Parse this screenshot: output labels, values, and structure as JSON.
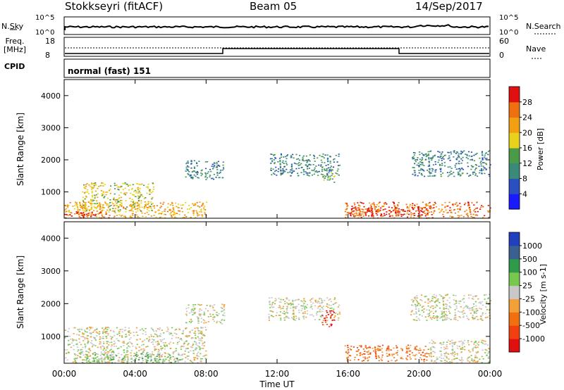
{
  "header": {
    "station": "Stokkseyri (fitACF)",
    "beam": "Beam 05",
    "date": "14/Sep/2017"
  },
  "noise_panel": {
    "left_label": "N.Sky",
    "right_label": "N.Search",
    "left_ticks": [
      "10^5",
      "10^0"
    ],
    "right_ticks": [
      "10^5",
      "10^0"
    ]
  },
  "freq_panel": {
    "left_label_line1": "Freq.",
    "left_label_line2": "[MHz]",
    "left_ticks": [
      "18",
      "8"
    ],
    "right_label": "Nave",
    "right_ticks": [
      "60",
      "0"
    ]
  },
  "cpid_panel": {
    "label": "CPID",
    "mode_text": "normal (fast) 151"
  },
  "chart_data": [
    {
      "type": "heatmap",
      "name": "Power",
      "ylabel": "Slant Range [km]",
      "yticks": [
        1000,
        2000,
        3000,
        4000
      ],
      "ylim": [
        180,
        4500
      ],
      "colorbar": {
        "label": "Power [dB]",
        "ticks": [
          "4",
          "8",
          "12",
          "16",
          "20",
          "24",
          "28"
        ],
        "colors": [
          "#1a1aff",
          "#2a4fc0",
          "#3a8a7a",
          "#4a9a4a",
          "#e8d21c",
          "#f2a010",
          "#f07010",
          "#e01010"
        ]
      },
      "echo_regions": [
        {
          "t0": 0.0,
          "t1": 8.0,
          "r0": 200,
          "r1": 700,
          "level": 5
        },
        {
          "t0": 0.0,
          "t1": 2.5,
          "r0": 200,
          "r1": 400,
          "level": 7
        },
        {
          "t0": 1.0,
          "t1": 5.0,
          "r0": 400,
          "r1": 1300,
          "level": 4
        },
        {
          "t0": 6.8,
          "t1": 9.0,
          "r0": 1400,
          "r1": 2000,
          "level": 2
        },
        {
          "t0": 11.5,
          "t1": 15.5,
          "r0": 1500,
          "r1": 2200,
          "level": 2
        },
        {
          "t0": 14.5,
          "t1": 15.2,
          "r0": 1300,
          "r1": 1800,
          "level": 3
        },
        {
          "t0": 15.8,
          "t1": 24.0,
          "r0": 200,
          "r1": 700,
          "level": 6
        },
        {
          "t0": 16.0,
          "t1": 20.5,
          "r0": 250,
          "r1": 550,
          "level": 7
        },
        {
          "t0": 19.5,
          "t1": 24.0,
          "r0": 1500,
          "r1": 2300,
          "level": 2
        }
      ]
    },
    {
      "type": "heatmap",
      "name": "Velocity",
      "ylabel": "Slant Range [km]",
      "yticks": [
        1000,
        2000,
        3000,
        4000
      ],
      "ylim": [
        180,
        4500
      ],
      "colorbar": {
        "label": "Velocity [m s-1]",
        "ticks": [
          "1000",
          "500",
          "100",
          "25",
          "-25",
          "-100",
          "-500",
          "-1000"
        ],
        "colors": [
          "#2040c0",
          "#3a6090",
          "#2f9a4a",
          "#78c850",
          "#c8c8c8",
          "#f4a038",
          "#f07010",
          "#f04010",
          "#e01010"
        ]
      },
      "echo_regions": [
        {
          "t0": 0.0,
          "t1": 8.0,
          "r0": 200,
          "r1": 1300,
          "level": 4
        },
        {
          "t0": 0.5,
          "t1": 6.5,
          "r0": 200,
          "r1": 500,
          "level": 3
        },
        {
          "t0": 6.8,
          "t1": 9.0,
          "r0": 1400,
          "r1": 2000,
          "level": 4
        },
        {
          "t0": 11.5,
          "t1": 15.5,
          "r0": 1500,
          "r1": 2200,
          "level": 4
        },
        {
          "t0": 14.5,
          "t1": 15.2,
          "r0": 1300,
          "r1": 1800,
          "level": 8
        },
        {
          "t0": 15.8,
          "t1": 20.5,
          "r0": 250,
          "r1": 750,
          "level": 6
        },
        {
          "t0": 20.5,
          "t1": 24.0,
          "r0": 200,
          "r1": 900,
          "level": 4
        },
        {
          "t0": 19.5,
          "t1": 24.0,
          "r0": 1500,
          "r1": 2300,
          "level": 4
        }
      ]
    }
  ],
  "x_axis": {
    "label": "Time UT",
    "ticks": [
      "00:00",
      "04:00",
      "08:00",
      "12:00",
      "16:00",
      "20:00",
      "00:00"
    ],
    "range_hours": [
      0,
      24
    ]
  }
}
